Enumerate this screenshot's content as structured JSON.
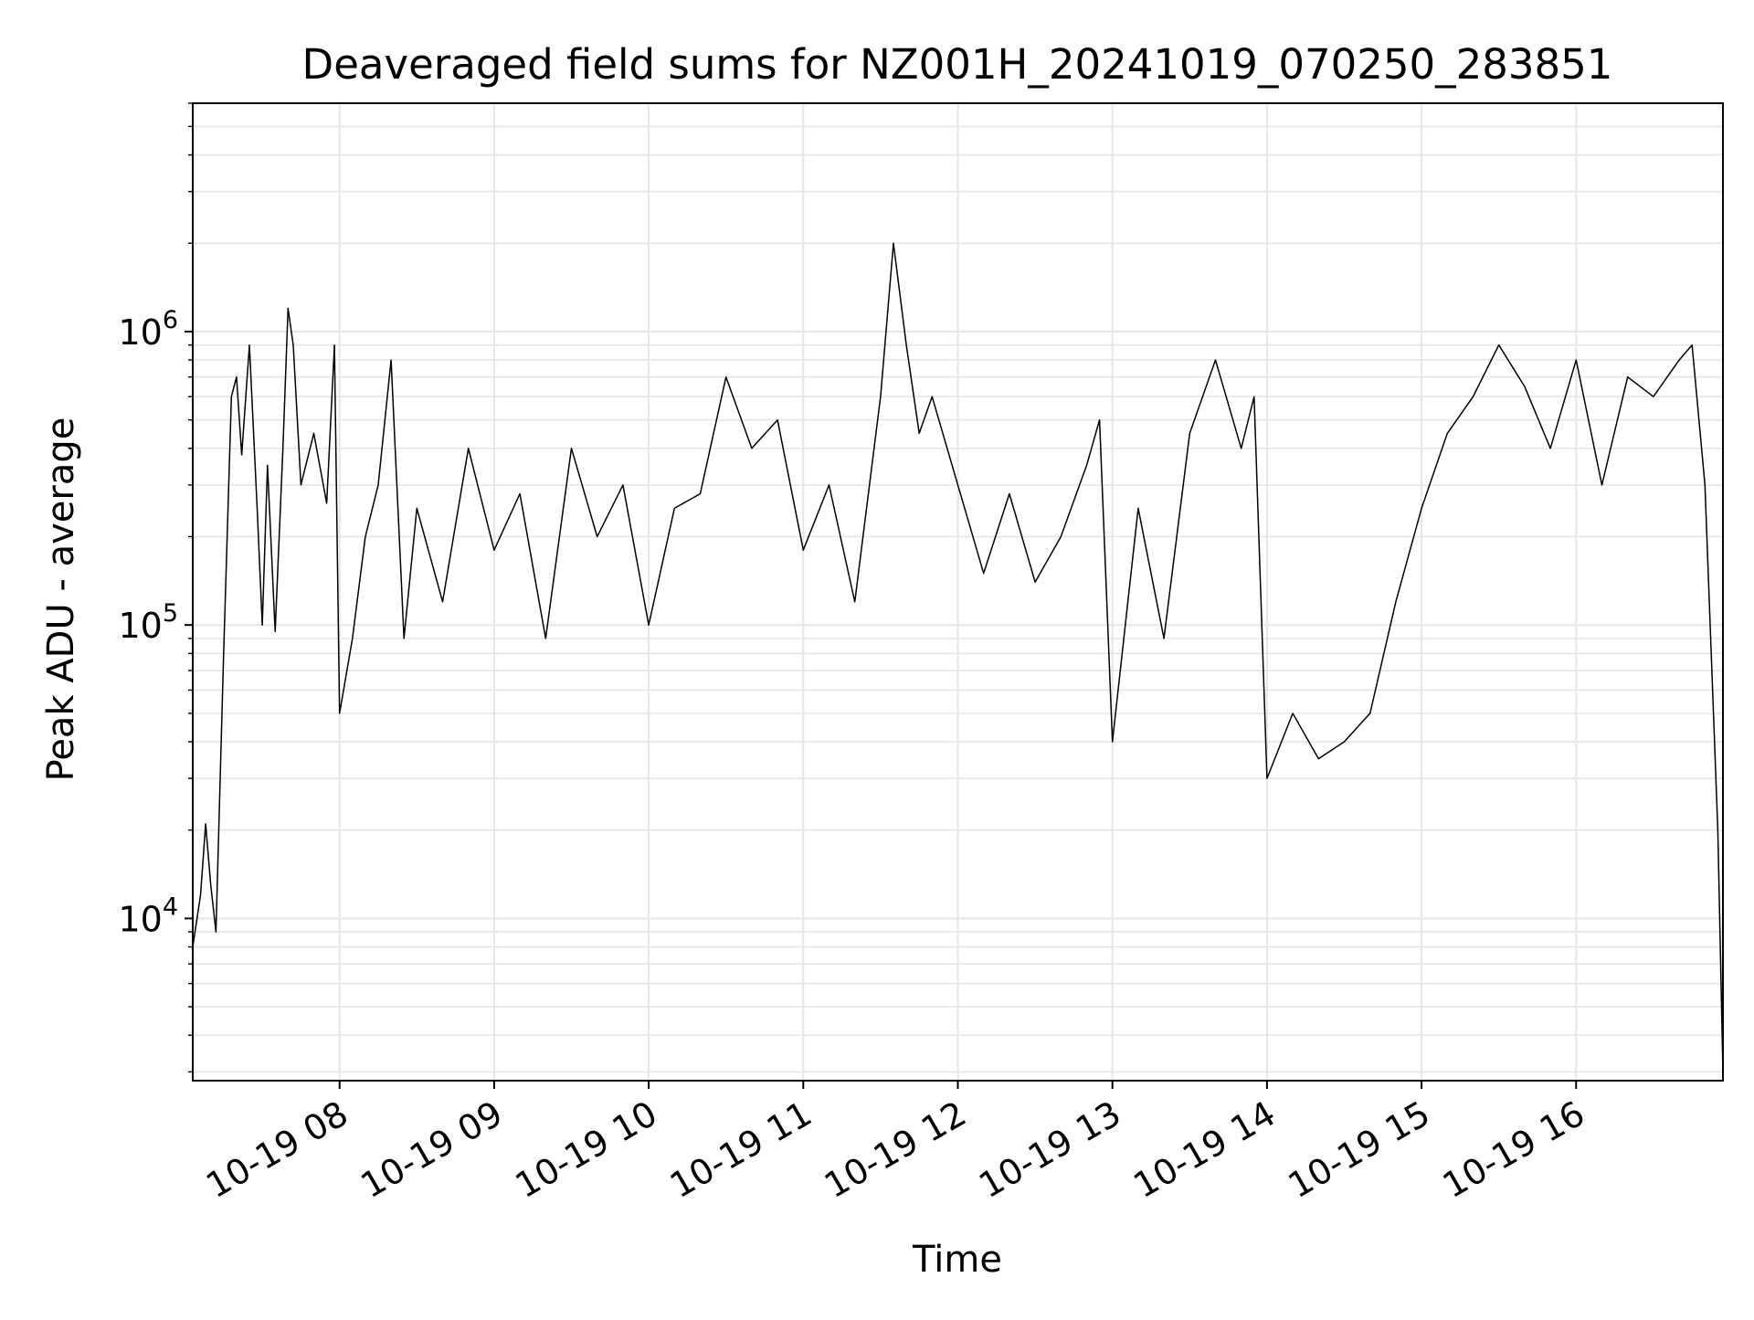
{
  "chart_data": {
    "type": "line",
    "title": "Deaveraged field sums for NZ001H_20241019_070250_283851",
    "xlabel": "Time",
    "ylabel": "Peak ADU - average",
    "y_scale": "log",
    "ylim": [
      2800,
      6000000
    ],
    "xlim": [
      "10-19 07:03",
      "10-19 16:57"
    ],
    "grid": true,
    "line_color": "#000000",
    "grid_color": "#e6e6e6",
    "x_ticks": [
      {
        "t": "10-19 08:00",
        "label": "10-19 08"
      },
      {
        "t": "10-19 09:00",
        "label": "10-19 09"
      },
      {
        "t": "10-19 10:00",
        "label": "10-19 10"
      },
      {
        "t": "10-19 11:00",
        "label": "10-19 11"
      },
      {
        "t": "10-19 12:00",
        "label": "10-19 12"
      },
      {
        "t": "10-19 13:00",
        "label": "10-19 13"
      },
      {
        "t": "10-19 14:00",
        "label": "10-19 14"
      },
      {
        "t": "10-19 15:00",
        "label": "10-19 15"
      },
      {
        "t": "10-19 16:00",
        "label": "10-19 16"
      }
    ],
    "y_ticks": [
      {
        "value": 10000,
        "base": "10",
        "exp": "4"
      },
      {
        "value": 100000,
        "base": "10",
        "exp": "5"
      },
      {
        "value": 1000000,
        "base": "10",
        "exp": "6"
      }
    ],
    "series": [
      {
        "x": [
          "10-19 07:03",
          "10-19 07:06",
          "10-19 07:08",
          "10-19 07:10",
          "10-19 07:12",
          "10-19 07:15",
          "10-19 07:18",
          "10-19 07:20",
          "10-19 07:22",
          "10-19 07:25",
          "10-19 07:28",
          "10-19 07:30",
          "10-19 07:32",
          "10-19 07:35",
          "10-19 07:38",
          "10-19 07:40",
          "10-19 07:42",
          "10-19 07:45",
          "10-19 07:50",
          "10-19 07:55",
          "10-19 07:58",
          "10-19 08:00",
          "10-19 08:05",
          "10-19 08:10",
          "10-19 08:15",
          "10-19 08:20",
          "10-19 08:25",
          "10-19 08:30",
          "10-19 08:40",
          "10-19 08:50",
          "10-19 09:00",
          "10-19 09:10",
          "10-19 09:20",
          "10-19 09:30",
          "10-19 09:40",
          "10-19 09:50",
          "10-19 10:00",
          "10-19 10:10",
          "10-19 10:20",
          "10-19 10:30",
          "10-19 10:40",
          "10-19 10:50",
          "10-19 11:00",
          "10-19 11:10",
          "10-19 11:20",
          "10-19 11:30",
          "10-19 11:35",
          "10-19 11:40",
          "10-19 11:45",
          "10-19 11:50",
          "10-19 12:00",
          "10-19 12:10",
          "10-19 12:20",
          "10-19 12:30",
          "10-19 12:40",
          "10-19 12:50",
          "10-19 12:55",
          "10-19 13:00",
          "10-19 13:10",
          "10-19 13:20",
          "10-19 13:30",
          "10-19 13:40",
          "10-19 13:50",
          "10-19 13:55",
          "10-19 14:00",
          "10-19 14:10",
          "10-19 14:20",
          "10-19 14:30",
          "10-19 14:40",
          "10-19 14:50",
          "10-19 15:00",
          "10-19 15:10",
          "10-19 15:20",
          "10-19 15:30",
          "10-19 15:40",
          "10-19 15:50",
          "10-19 16:00",
          "10-19 16:10",
          "10-19 16:20",
          "10-19 16:30",
          "10-19 16:40",
          "10-19 16:45",
          "10-19 16:50",
          "10-19 16:55",
          "10-19 16:57"
        ],
        "y": [
          8000,
          12000,
          21000,
          13000,
          9000,
          80000,
          600000,
          700000,
          380000,
          900000,
          250000,
          100000,
          350000,
          95000,
          400000,
          1200000,
          900000,
          300000,
          450000,
          260000,
          900000,
          50000,
          90000,
          200000,
          300000,
          800000,
          90000,
          250000,
          120000,
          400000,
          180000,
          280000,
          90000,
          400000,
          200000,
          300000,
          100000,
          250000,
          280000,
          700000,
          400000,
          500000,
          180000,
          300000,
          120000,
          600000,
          2000000,
          900000,
          450000,
          600000,
          300000,
          150000,
          280000,
          140000,
          200000,
          350000,
          500000,
          40000,
          250000,
          90000,
          450000,
          800000,
          400000,
          600000,
          30000,
          50000,
          35000,
          40000,
          50000,
          120000,
          250000,
          450000,
          600000,
          900000,
          650000,
          400000,
          800000,
          300000,
          700000,
          600000,
          800000,
          900000,
          300000,
          20000,
          3000
        ]
      }
    ]
  }
}
